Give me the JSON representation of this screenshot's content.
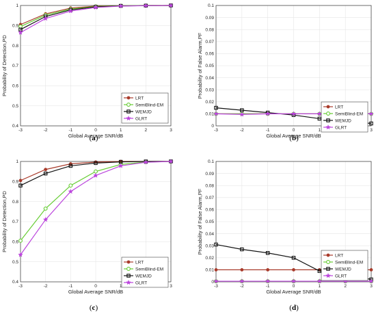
{
  "colors": {
    "LRT": "#a83a2a",
    "SemiBlind-EM": "#66cc33",
    "WEMJD": "#111111",
    "GLRT": "#bb44dd",
    "grid": "#e6e6e6"
  },
  "chart_data": [
    {
      "type": "line",
      "panel_label": "a",
      "xlabel": "Global Average SNR/dB",
      "ylabel": "Probability of Detection,PD",
      "x": [
        -3,
        -2,
        -1,
        0,
        1,
        2,
        3
      ],
      "xlim": [
        -3,
        3
      ],
      "ylim": [
        0.4,
        1.0
      ],
      "yticks": [
        "0.4",
        "0.5",
        "0.6",
        "0.7",
        "0.8",
        "0.9",
        "1"
      ],
      "grid": true,
      "legend": "bottom-right",
      "series": [
        {
          "name": "LRT",
          "marker": "circle",
          "values": [
            0.905,
            0.958,
            0.987,
            0.997,
            0.999,
            1.0,
            1.0
          ]
        },
        {
          "name": "SemiBlind-EM",
          "marker": "circle-open",
          "values": [
            0.895,
            0.952,
            0.982,
            0.995,
            0.999,
            1.0,
            1.0
          ]
        },
        {
          "name": "WEMJD",
          "marker": "square",
          "values": [
            0.88,
            0.945,
            0.978,
            0.993,
            0.998,
            0.999,
            1.0
          ]
        },
        {
          "name": "GLRT",
          "marker": "star",
          "values": [
            0.865,
            0.935,
            0.972,
            0.99,
            0.997,
            0.999,
            1.0
          ]
        }
      ]
    },
    {
      "type": "line",
      "panel_label": "b",
      "xlabel": "Global Average SNR/dB",
      "ylabel": "Probability of False Alarm,PF",
      "x": [
        -3,
        -2,
        -1,
        0,
        1,
        2,
        3
      ],
      "xlim": [
        -3,
        3
      ],
      "ylim": [
        0,
        0.1
      ],
      "yticks": [
        "0",
        "0.01",
        "0.02",
        "0.03",
        "0.04",
        "0.05",
        "0.06",
        "0.07",
        "0.08",
        "0.09",
        "0.1"
      ],
      "grid": true,
      "legend": "bottom-right",
      "series": [
        {
          "name": "LRT",
          "marker": "circle",
          "values": [
            0.01,
            0.01,
            0.01,
            0.01,
            0.01,
            0.01,
            0.01
          ]
        },
        {
          "name": "SemiBlind-EM",
          "marker": "circle-open",
          "values": [
            0.01,
            0.01,
            0.01,
            0.01,
            0.01,
            0.01,
            0.01
          ]
        },
        {
          "name": "WEMJD",
          "marker": "square",
          "values": [
            0.015,
            0.013,
            0.011,
            0.009,
            0.006,
            0.004,
            0.002
          ]
        },
        {
          "name": "GLRT",
          "marker": "star",
          "values": [
            0.01,
            0.0095,
            0.01,
            0.01,
            0.01,
            0.01,
            0.01
          ]
        }
      ]
    },
    {
      "type": "line",
      "panel_label": "c",
      "xlabel": "Global Average SNR/dB",
      "ylabel": "Probability of Detection,PD",
      "x": [
        -3,
        -2,
        -1,
        0,
        1,
        2,
        3
      ],
      "xlim": [
        -3,
        3
      ],
      "ylim": [
        0.4,
        1.0
      ],
      "yticks": [
        "0.4",
        "0.5",
        "0.6",
        "0.7",
        "0.8",
        "0.9",
        "1"
      ],
      "grid": true,
      "legend": "bottom-right",
      "series": [
        {
          "name": "LRT",
          "marker": "circle",
          "values": [
            0.905,
            0.96,
            0.988,
            0.997,
            1.0,
            1.0,
            1.0
          ]
        },
        {
          "name": "SemiBlind-EM",
          "marker": "circle-open",
          "values": [
            0.605,
            0.765,
            0.88,
            0.95,
            0.985,
            0.997,
            1.0
          ]
        },
        {
          "name": "WEMJD",
          "marker": "square",
          "values": [
            0.88,
            0.94,
            0.978,
            0.992,
            0.998,
            1.0,
            1.0
          ]
        },
        {
          "name": "GLRT",
          "marker": "star",
          "values": [
            0.535,
            0.71,
            0.85,
            0.93,
            0.978,
            0.996,
            1.0
          ]
        }
      ]
    },
    {
      "type": "line",
      "panel_label": "d",
      "xlabel": "Global Average SNR/dB",
      "ylabel": "Probability of False Alarm,PF",
      "x": [
        -3,
        -2,
        -1,
        0,
        1,
        2,
        3
      ],
      "xlim": [
        -3,
        3
      ],
      "ylim": [
        0,
        0.1
      ],
      "yticks": [
        "0",
        "0.01",
        "0.02",
        "0.03",
        "0.04",
        "0.05",
        "0.06",
        "0.07",
        "0.08",
        "0.09",
        "0.1"
      ],
      "grid": true,
      "legend": "bottom-right",
      "series": [
        {
          "name": "LRT",
          "marker": "circle",
          "values": [
            0.01,
            0.01,
            0.01,
            0.01,
            0.01,
            0.01,
            0.01
          ]
        },
        {
          "name": "SemiBlind-EM",
          "marker": "circle-open",
          "values": [
            0.0005,
            0.0005,
            0.0005,
            0.0005,
            0.0005,
            0.0005,
            0.0005
          ]
        },
        {
          "name": "WEMJD",
          "marker": "square",
          "values": [
            0.031,
            0.027,
            0.024,
            0.02,
            0.009,
            0.006,
            0.002
          ]
        },
        {
          "name": "GLRT",
          "marker": "star",
          "values": [
            0.0005,
            0.0005,
            0.0005,
            0.0005,
            0.0005,
            0.0005,
            0.0005
          ]
        }
      ]
    }
  ]
}
